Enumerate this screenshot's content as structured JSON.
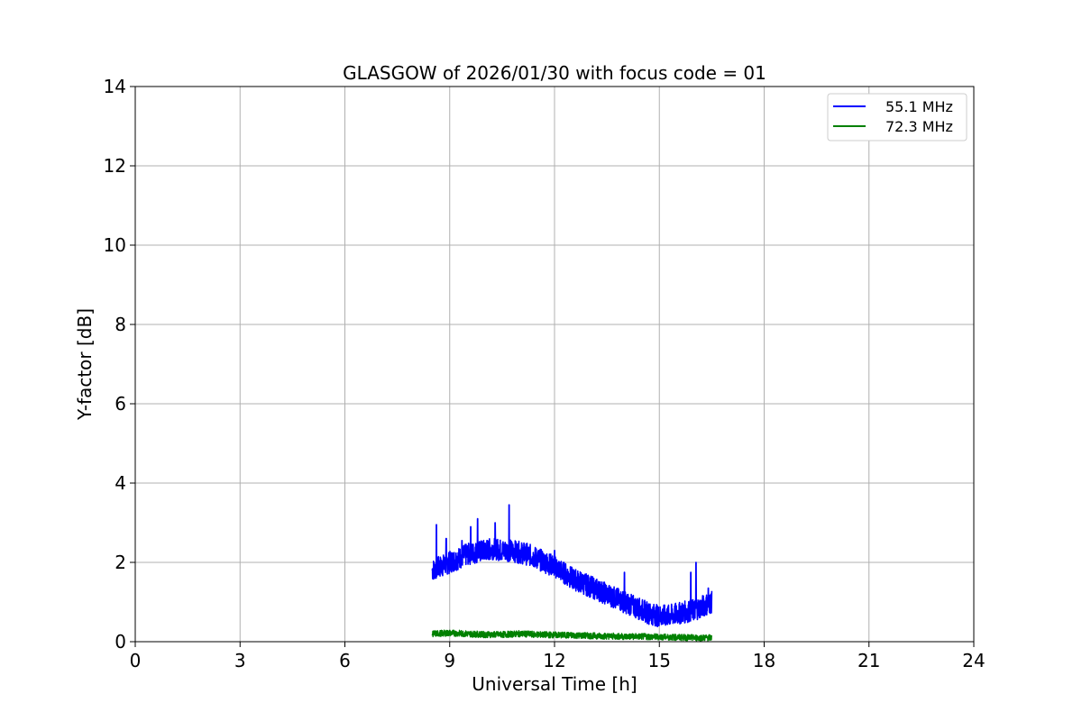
{
  "chart_data": {
    "type": "line",
    "title": "GLASGOW of 2026/01/30 with focus code = 01",
    "xlabel": "Universal Time [h]",
    "ylabel": "Y-factor [dB]",
    "xlim": [
      0,
      24
    ],
    "ylim": [
      0,
      14
    ],
    "xticks": [
      "0",
      "3",
      "6",
      "9",
      "12",
      "15",
      "18",
      "21",
      "24"
    ],
    "yticks": [
      "0",
      "2",
      "4",
      "6",
      "8",
      "10",
      "12",
      "14"
    ],
    "grid": true,
    "legend_position": "top-right",
    "series": [
      {
        "name": "55.1 MHz",
        "color": "#0000ff",
        "x": [
          8.5,
          8.6,
          8.75,
          9.0,
          9.25,
          9.5,
          9.75,
          10.0,
          10.25,
          10.5,
          10.75,
          11.0,
          11.25,
          11.5,
          11.75,
          12.0,
          12.25,
          12.5,
          12.75,
          13.0,
          13.25,
          13.5,
          13.75,
          14.0,
          14.25,
          14.5,
          14.75,
          15.0,
          15.25,
          15.5,
          15.75,
          16.0,
          16.25,
          16.5
        ],
        "y": [
          1.8,
          1.85,
          1.9,
          2.0,
          2.1,
          2.2,
          2.25,
          2.3,
          2.35,
          2.3,
          2.3,
          2.25,
          2.2,
          2.1,
          2.0,
          1.9,
          1.75,
          1.6,
          1.5,
          1.4,
          1.3,
          1.2,
          1.1,
          1.0,
          0.9,
          0.8,
          0.7,
          0.65,
          0.65,
          0.7,
          0.75,
          0.8,
          0.9,
          1.0
        ],
        "spikes": [
          {
            "x": 8.62,
            "y": 2.95
          },
          {
            "x": 8.9,
            "y": 2.6
          },
          {
            "x": 9.35,
            "y": 2.55
          },
          {
            "x": 9.6,
            "y": 2.9
          },
          {
            "x": 9.8,
            "y": 3.1
          },
          {
            "x": 10.3,
            "y": 3.0
          },
          {
            "x": 10.7,
            "y": 3.45
          },
          {
            "x": 12.0,
            "y": 2.3
          },
          {
            "x": 14.0,
            "y": 1.75
          },
          {
            "x": 15.9,
            "y": 1.75
          },
          {
            "x": 16.05,
            "y": 2.0
          },
          {
            "x": 16.4,
            "y": 1.35
          }
        ]
      },
      {
        "name": "72.3 MHz",
        "color": "#008000",
        "x": [
          8.5,
          9.0,
          9.5,
          10.0,
          10.5,
          11.0,
          11.5,
          12.0,
          12.5,
          13.0,
          13.5,
          14.0,
          14.5,
          15.0,
          15.5,
          16.0,
          16.5
        ],
        "y": [
          0.2,
          0.22,
          0.2,
          0.18,
          0.18,
          0.2,
          0.18,
          0.17,
          0.16,
          0.15,
          0.14,
          0.13,
          0.13,
          0.12,
          0.11,
          0.1,
          0.1
        ]
      }
    ]
  }
}
